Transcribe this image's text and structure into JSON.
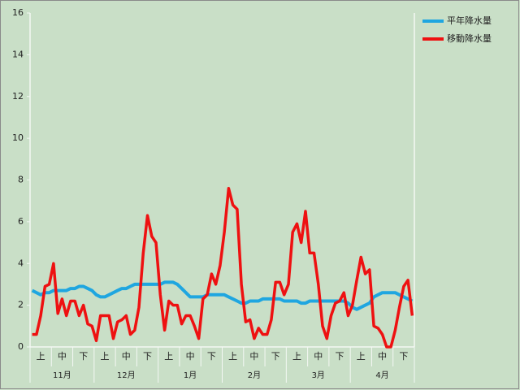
{
  "chart_data": {
    "type": "line",
    "categories": [
      null,
      null,
      "上",
      null,
      null,
      null,
      null,
      "中",
      null,
      null,
      null,
      null,
      "下",
      null,
      null,
      null,
      null,
      "上",
      null,
      null,
      null,
      null,
      "中",
      null,
      null,
      null,
      null,
      "下",
      null,
      null,
      null,
      null,
      "上",
      null,
      null,
      null,
      null,
      "中",
      null,
      null,
      null,
      null,
      "下",
      null,
      null,
      null,
      null,
      "上",
      null,
      null,
      null,
      null,
      "中",
      null,
      null,
      null,
      null,
      "下",
      null,
      null,
      null,
      null,
      "上",
      null,
      null,
      null,
      null,
      "中",
      null,
      null,
      null,
      null,
      "下",
      null,
      null,
      null,
      null,
      "上",
      null,
      null,
      null,
      null,
      "中",
      null,
      null,
      null,
      null,
      "下",
      null,
      null
    ],
    "months": [
      "11月",
      "12月",
      "1月",
      "2月",
      "3月",
      "4月"
    ],
    "series": [
      {
        "name": "平年降水量",
        "color": "#1fa6e0",
        "values": [
          2.7,
          2.6,
          2.5,
          2.6,
          2.6,
          2.7,
          2.7,
          2.7,
          2.7,
          2.8,
          2.8,
          2.9,
          2.9,
          2.8,
          2.7,
          2.5,
          2.4,
          2.4,
          2.5,
          2.6,
          2.7,
          2.8,
          2.8,
          2.9,
          3.0,
          3.0,
          3.0,
          3.0,
          3.0,
          3.0,
          3.0,
          3.1,
          3.1,
          3.1,
          3.0,
          2.8,
          2.6,
          2.4,
          2.4,
          2.4,
          2.4,
          2.5,
          2.5,
          2.5,
          2.5,
          2.5,
          2.4,
          2.3,
          2.2,
          2.1,
          2.1,
          2.2,
          2.2,
          2.2,
          2.3,
          2.3,
          2.3,
          2.3,
          2.3,
          2.2,
          2.2,
          2.2,
          2.2,
          2.1,
          2.1,
          2.2,
          2.2,
          2.2,
          2.2,
          2.2,
          2.2,
          2.2,
          2.2,
          2.2,
          2.1,
          1.9,
          1.8,
          1.9,
          2.0,
          2.1,
          2.4,
          2.5,
          2.6,
          2.6,
          2.6,
          2.6,
          2.5,
          2.4,
          2.3,
          2.2
        ]
      },
      {
        "name": "移動降水量",
        "color": "#ee1111",
        "values": [
          0.6,
          0.6,
          1.5,
          2.9,
          3.0,
          4.0,
          1.6,
          2.3,
          1.5,
          2.2,
          2.2,
          1.5,
          2.0,
          1.1,
          1.0,
          0.3,
          1.5,
          1.5,
          1.5,
          0.4,
          1.2,
          1.3,
          1.5,
          0.6,
          0.8,
          1.9,
          4.5,
          6.3,
          5.3,
          5.0,
          2.5,
          0.8,
          2.2,
          2.0,
          2.0,
          1.1,
          1.5,
          1.5,
          1.0,
          0.4,
          2.3,
          2.5,
          3.5,
          3.0,
          3.9,
          5.5,
          7.6,
          6.8,
          6.6,
          3.0,
          1.2,
          1.3,
          0.4,
          0.9,
          0.6,
          0.6,
          1.3,
          3.1,
          3.1,
          2.5,
          3.0,
          5.5,
          5.9,
          5.0,
          6.5,
          4.5,
          4.5,
          3.0,
          1.0,
          0.4,
          1.5,
          2.1,
          2.2,
          2.6,
          1.5,
          2.0,
          3.2,
          4.3,
          3.5,
          3.7,
          1.0,
          0.9,
          0.6,
          0.0,
          0.0,
          0.8,
          1.9,
          2.9,
          3.2,
          1.5
        ]
      }
    ],
    "ylim": [
      0,
      16
    ],
    "yticks": [
      0,
      2,
      4,
      6,
      8,
      10,
      12,
      14,
      16
    ],
    "grid": false,
    "legend": "right"
  }
}
